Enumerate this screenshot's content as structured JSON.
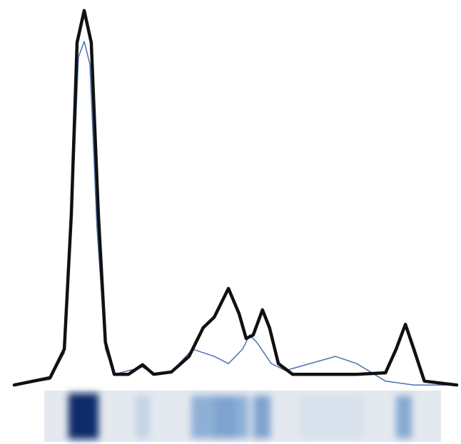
{
  "chart_data": {
    "type": "line",
    "xlim": [
      0,
      100
    ],
    "ylim": [
      0,
      100
    ],
    "series": [
      {
        "color": "#4a72b0",
        "width": 1.5,
        "x": [
          0,
          8.1,
          11.3,
          12.9,
          14.5,
          15.8,
          17.1,
          18.7,
          20.6,
          22.6,
          29,
          31.5,
          35.5,
          40.3,
          45.2,
          48.4,
          51.6,
          53.2,
          54.8,
          58.1,
          61.3,
          72.6,
          77.4,
          83.9,
          90.3,
          100
        ],
        "values": [
          0.9,
          2.4,
          9.3,
          42.1,
          86.9,
          91,
          85,
          42.1,
          10.3,
          3.7,
          5.6,
          3.7,
          4.3,
          10.3,
          8.4,
          6.5,
          10.3,
          14,
          12.1,
          6.5,
          4.7,
          8.4,
          6.5,
          1.9,
          0.9,
          0.9
        ]
      },
      {
        "color": "#111111",
        "width": 4.5,
        "x": [
          0,
          8.1,
          11.3,
          12.9,
          14.2,
          15.8,
          17.4,
          19,
          20.6,
          22.6,
          25.8,
          29,
          31.5,
          35.5,
          39.5,
          42.7,
          45.2,
          48.4,
          50.8,
          52.4,
          54,
          56.1,
          57.7,
          59.7,
          62.9,
          69.4,
          77.4,
          83.9,
          86.3,
          88.4,
          90.3,
          92.7,
          100
        ],
        "values": [
          0.9,
          2.8,
          10.3,
          45.8,
          90.7,
          99.1,
          90.7,
          45.8,
          12.1,
          3.7,
          3.7,
          6.2,
          3.7,
          4.3,
          8.4,
          15.9,
          18.7,
          26.2,
          19.6,
          13.1,
          14,
          20.6,
          15.9,
          6.5,
          3.7,
          3.7,
          3.7,
          4.1,
          10.3,
          16.8,
          10.3,
          1.9,
          0.9
        ]
      }
    ]
  }
}
